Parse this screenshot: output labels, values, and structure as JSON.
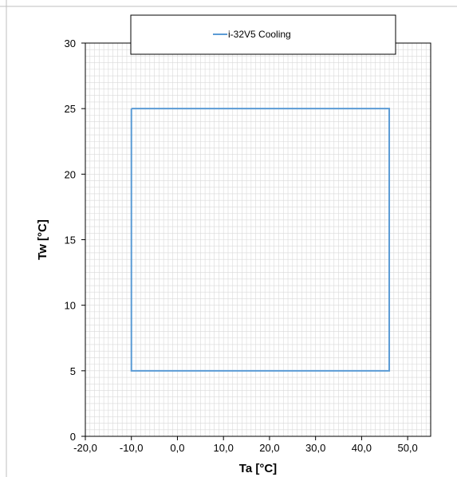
{
  "chart_data": {
    "type": "line",
    "title": "",
    "xlabel": "Ta [°C]",
    "ylabel": "Tw [°C]",
    "xlim": [
      -20,
      55
    ],
    "ylim": [
      0,
      30
    ],
    "xticks": [
      -20,
      -10,
      0,
      10,
      20,
      30,
      40,
      50
    ],
    "xtick_labels": [
      "-20,0",
      "-10,0",
      "0,0",
      "10,0",
      "20,0",
      "30,0",
      "40,0",
      "50,0"
    ],
    "yticks": [
      0,
      5,
      10,
      15,
      20,
      25,
      30
    ],
    "ytick_labels": [
      "0",
      "5",
      "10",
      "15",
      "20",
      "25",
      "30"
    ],
    "grid": true,
    "legend_position": "top-center",
    "series": [
      {
        "name": "i-32V5 Cooling",
        "color": "#5b9bd5",
        "x": [
          -10,
          46,
          46,
          -10,
          -10
        ],
        "y": [
          25,
          25,
          5,
          5,
          25
        ]
      }
    ]
  }
}
